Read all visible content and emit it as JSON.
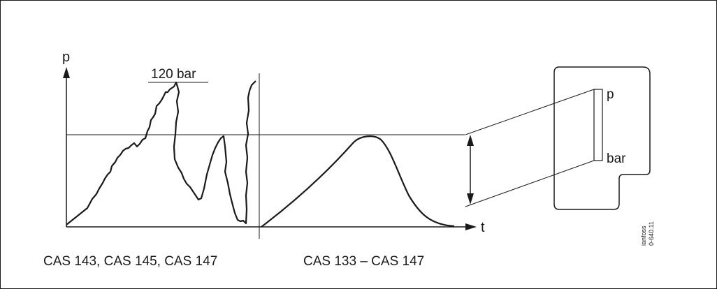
{
  "diagram": {
    "y_axis_label": "p",
    "x_axis_label": "t",
    "peak_label": "120 bar",
    "gauge_top_label": "p",
    "gauge_bottom_label": "bar",
    "caption_left": "CAS 143, CAS 145, CAS 147",
    "caption_right": "CAS 133 – CAS 147",
    "vertical_note_line1": "ianfoss",
    "vertical_note_line2": "0-640.11"
  }
}
